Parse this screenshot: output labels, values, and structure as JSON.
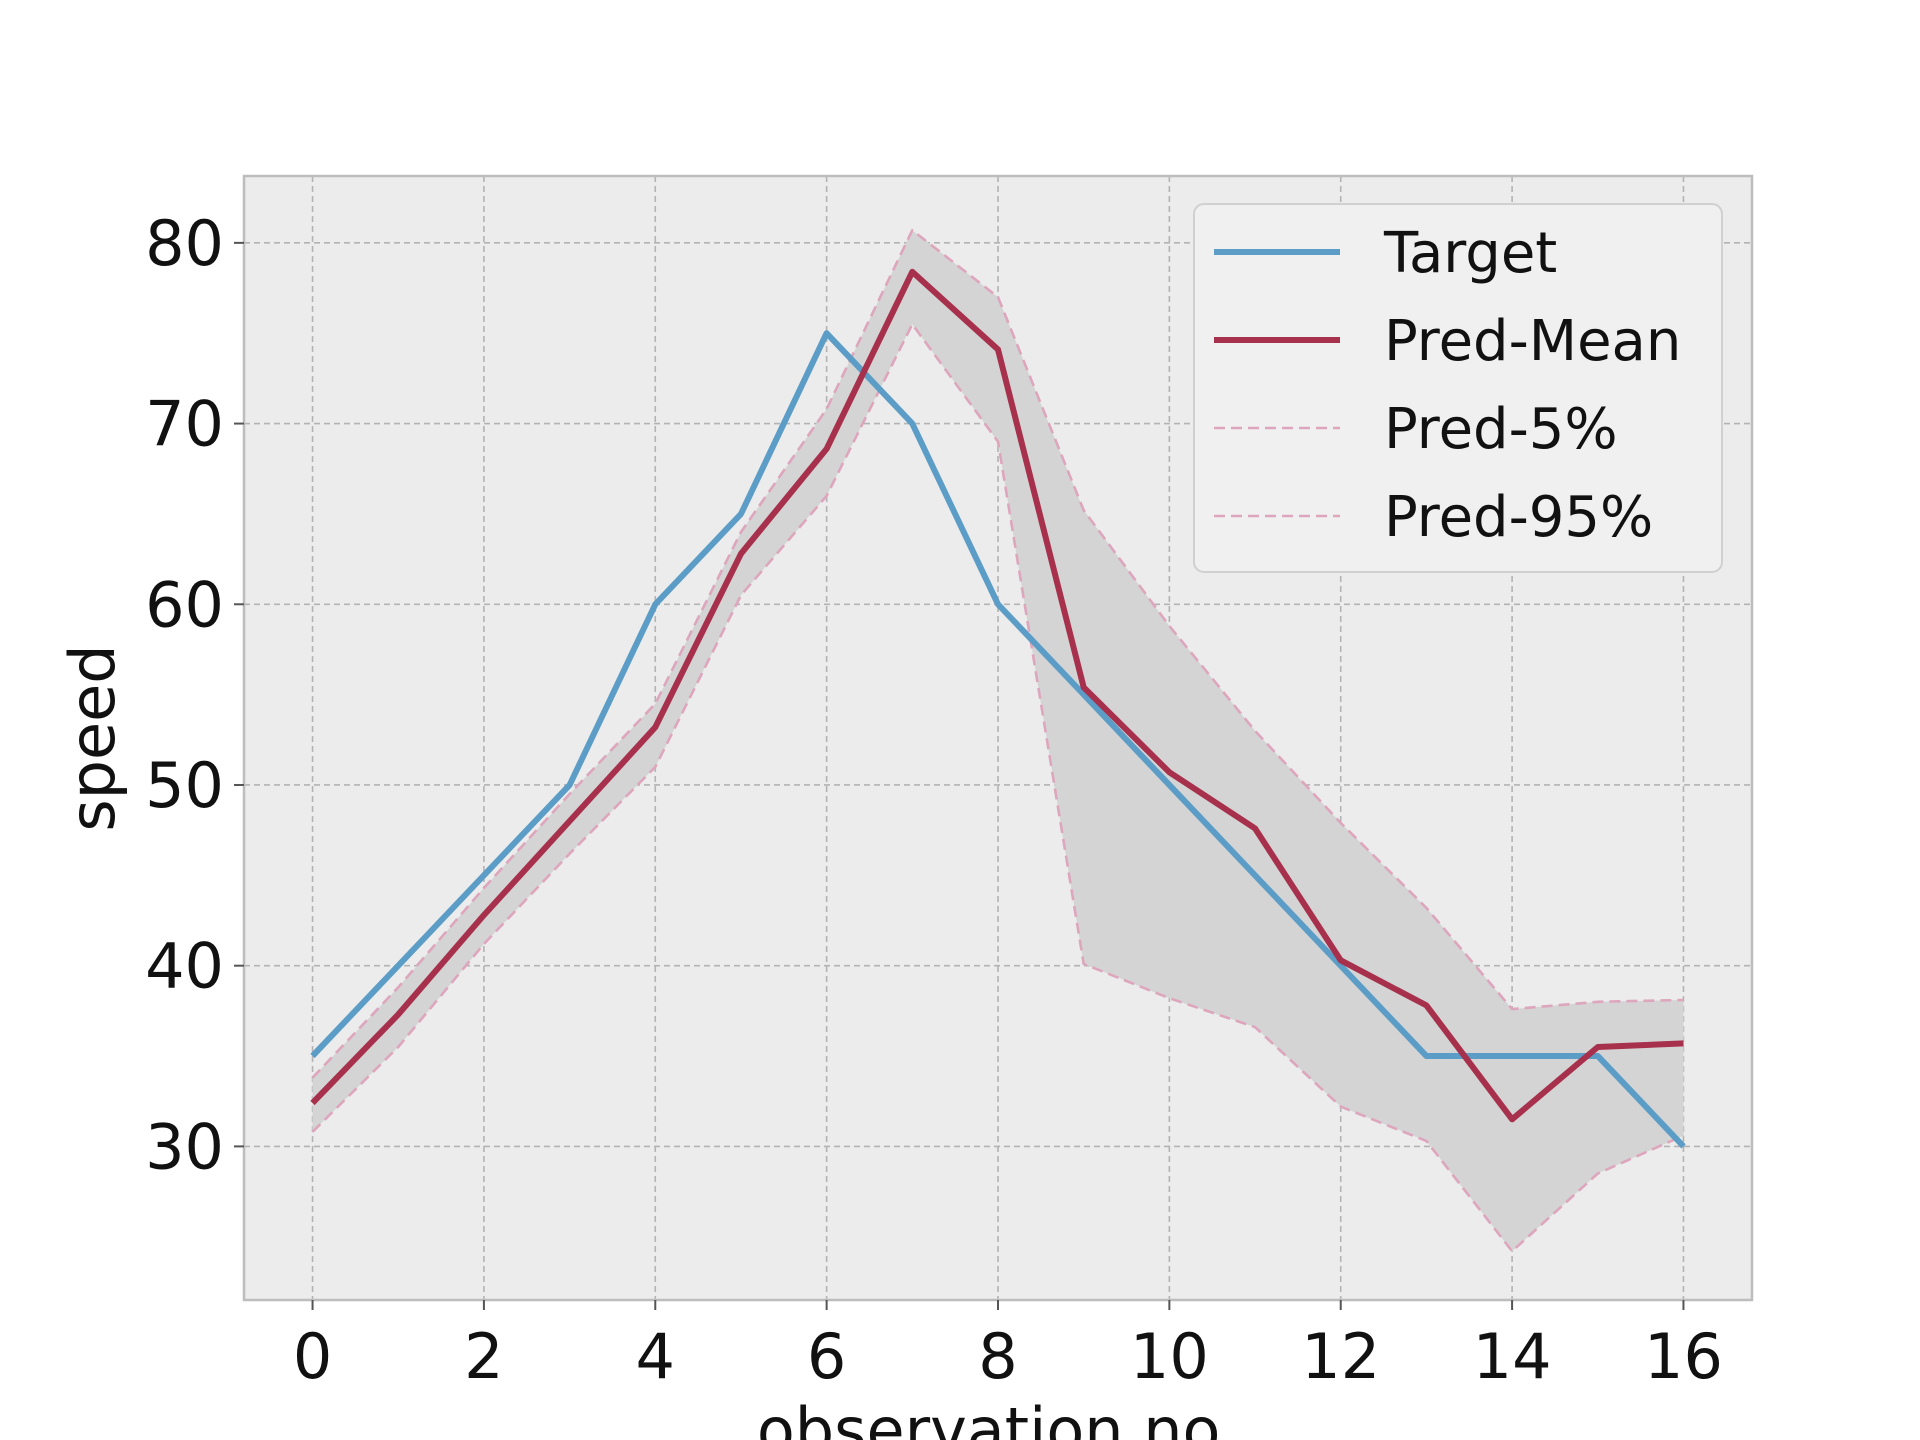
{
  "chart_data": {
    "type": "line",
    "xlabel": "observation no.",
    "ylabel": "speed",
    "xlim": [
      -0.8,
      16.8
    ],
    "ylim": [
      21.5,
      83.7
    ],
    "xticks": [
      0,
      2,
      4,
      6,
      8,
      10,
      12,
      14,
      16
    ],
    "yticks": [
      30,
      40,
      50,
      60,
      70,
      80
    ],
    "xtick_labels": [
      "0",
      "2",
      "4",
      "6",
      "8",
      "10",
      "12",
      "14",
      "16"
    ],
    "ytick_labels": [
      "30",
      "40",
      "50",
      "60",
      "70",
      "80"
    ],
    "grid": true,
    "legend_position": "top-right",
    "x": [
      0,
      1,
      2,
      3,
      4,
      5,
      6,
      7,
      8,
      9,
      10,
      11,
      12,
      13,
      14,
      15,
      16
    ],
    "series": [
      {
        "name": "Target",
        "color": "#5b9dc6",
        "style": "solid",
        "values": [
          35,
          40,
          45,
          50,
          60,
          65,
          75,
          70,
          60,
          55,
          50,
          45,
          40,
          35,
          35,
          35,
          30
        ]
      },
      {
        "name": "Pred-Mean",
        "color": "#a7304c",
        "style": "solid",
        "values": [
          32.4,
          37.3,
          42.8,
          48,
          53.2,
          62.8,
          68.6,
          78.4,
          74.1,
          55.4,
          50.7,
          47.6,
          40.3,
          37.8,
          31.5,
          35.5,
          35.7
        ]
      },
      {
        "name": "Pred-5%",
        "color": "#dda6bd",
        "style": "dashed",
        "values": [
          30.8,
          35.5,
          41.2,
          46.2,
          51,
          60.5,
          66,
          75.5,
          69,
          40.1,
          38.2,
          36.6,
          32.2,
          30.3,
          24.2,
          28.5,
          30.6
        ]
      },
      {
        "name": "Pred-95%",
        "color": "#dda6bd",
        "style": "dashed",
        "values": [
          33.8,
          38.8,
          44.3,
          49.5,
          54.5,
          64,
          70.8,
          80.7,
          77,
          65.2,
          58.8,
          53,
          47.9,
          43.2,
          37.6,
          38,
          38.1
        ]
      }
    ],
    "band": {
      "lower": "Pred-5%",
      "upper": "Pred-95%",
      "color": "#d4d4d4"
    },
    "colors": {
      "plot_background": "#ececec",
      "grid": "#b3b3b3",
      "frame": "#bdbdbd",
      "legend_background": "#f0f0f0"
    }
  }
}
